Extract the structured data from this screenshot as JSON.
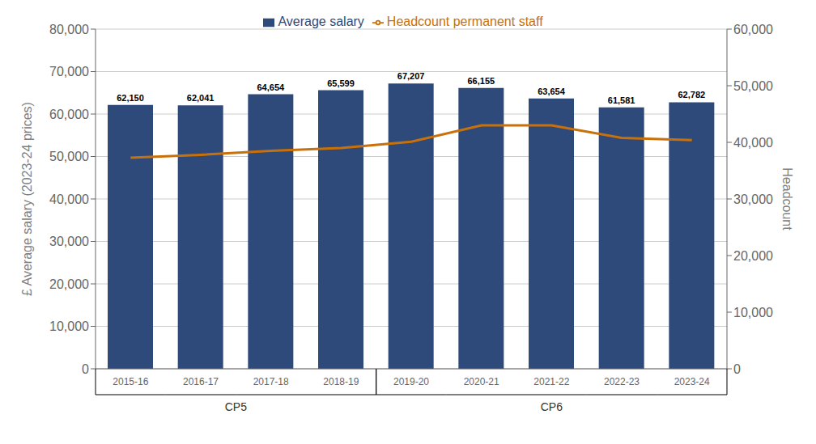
{
  "chart_data": {
    "type": "bar",
    "categories": [
      "2015-16",
      "2016-17",
      "2017-18",
      "2018-19",
      "2019-20",
      "2020-21",
      "2021-22",
      "2022-23",
      "2023-24"
    ],
    "series": [
      {
        "name": "Average salary",
        "type": "bar",
        "color": "#2E4A7A",
        "data_labels": true,
        "values": [
          62150,
          62041,
          64654,
          65599,
          67207,
          66155,
          63654,
          61581,
          62782
        ],
        "value_labels": [
          "62,150",
          "62,041",
          "64,654",
          "65,599",
          "67,207",
          "66,155",
          "63,654",
          "61,581",
          "62,782"
        ]
      },
      {
        "name": "Headcount permanent staff",
        "type": "line",
        "axis": "y2",
        "color": "#C8710A",
        "values": [
          37300,
          37800,
          38500,
          39000,
          40100,
          43000,
          43000,
          40790,
          40402
        ]
      }
    ],
    "ylabel": "£ Average salary (2023-24 prices)",
    "y2label": "Headcount",
    "ylim": [
      0,
      80000
    ],
    "yticks": [
      0,
      {
        "value": 10000,
        "label": "10,000"
      },
      {
        "value": 20000,
        "label": "20,000"
      },
      {
        "value": 30000,
        "label": "30,000"
      },
      {
        "value": 40000,
        "label": "40,000"
      },
      {
        "value": 50000,
        "label": "50,000"
      },
      {
        "value": 60000,
        "label": "60,000"
      },
      {
        "value": 70000,
        "label": "70,000"
      },
      {
        "value": 80000,
        "label": "80,000"
      }
    ],
    "y2lim": [
      0,
      60000
    ],
    "y2ticks": [
      0,
      {
        "value": 10000,
        "label": "10,000"
      },
      {
        "value": 20000,
        "label": "20,000"
      },
      {
        "value": 30000,
        "label": "30,000"
      },
      {
        "value": 40000,
        "label": "40,000"
      },
      {
        "value": 50000,
        "label": "50,000"
      },
      {
        "value": 60000,
        "label": "60,000"
      }
    ],
    "grid": true,
    "legend": "top",
    "annotations": [
      {
        "text": "CP5",
        "from": "2015-16",
        "to": "2018-19"
      },
      {
        "text": "CP6",
        "from": "2019-20",
        "to": "2023-24"
      }
    ]
  }
}
